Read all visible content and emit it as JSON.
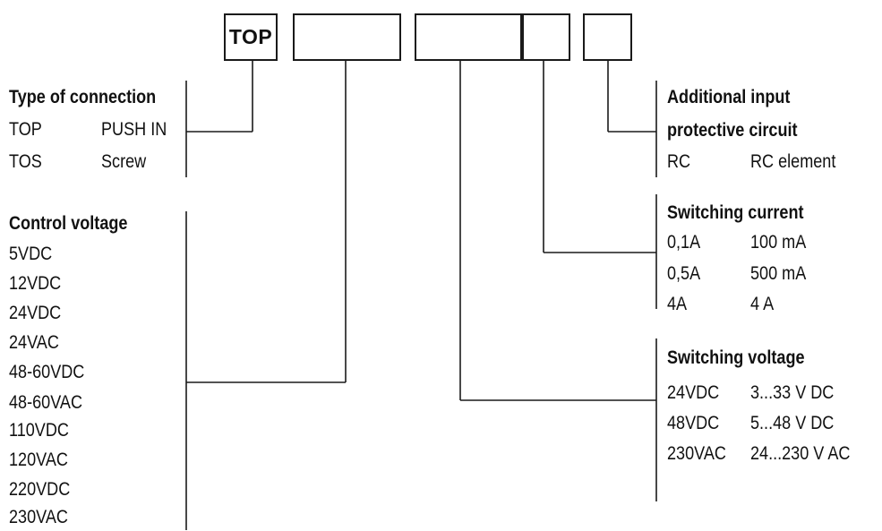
{
  "code_boxes": [
    "TOP",
    "",
    "",
    "",
    ""
  ],
  "connection": {
    "heading": "Type of connection",
    "rows": [
      [
        "TOP",
        "PUSH IN"
      ],
      [
        "TOS",
        "Screw"
      ]
    ]
  },
  "control_voltage": {
    "heading": "Control voltage",
    "items": [
      "5VDC",
      "12VDC",
      "24VDC",
      "24VAC",
      "48-60VDC",
      "48-60VAC",
      "110VDC",
      "120VAC",
      "220VDC",
      "230VAC"
    ]
  },
  "protective": {
    "heading_line1": "Additional input",
    "heading_line2": "protective circuit",
    "rows": [
      [
        "RC",
        "RC element"
      ]
    ]
  },
  "switching_current": {
    "heading": "Switching current",
    "rows": [
      [
        "0,1A",
        "100 mA"
      ],
      [
        "0,5A",
        "500 mA"
      ],
      [
        "4A",
        "4 A"
      ]
    ]
  },
  "switching_voltage": {
    "heading": "Switching voltage",
    "rows": [
      [
        "24VDC",
        "3...33 V DC"
      ],
      [
        "48VDC",
        "5...48 V DC"
      ],
      [
        "230VAC",
        "24...230 V AC"
      ]
    ]
  }
}
